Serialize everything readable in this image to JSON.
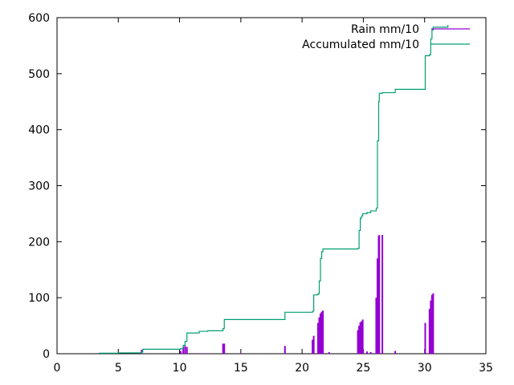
{
  "chart_data": {
    "type": "line",
    "title": "",
    "xlabel": "",
    "ylabel": "",
    "xlim": [
      0,
      35
    ],
    "ylim": [
      0,
      600
    ],
    "x_ticks": [
      0,
      5,
      10,
      15,
      20,
      25,
      30,
      35
    ],
    "y_ticks": [
      0,
      100,
      200,
      300,
      400,
      500,
      600
    ],
    "grid": false,
    "legend_position": "top-right",
    "series": [
      {
        "name": "Rain mm/10",
        "kind": "impulses",
        "color": "#9400d3",
        "points": [
          [
            3.4,
            1
          ],
          [
            5.0,
            1
          ],
          [
            6.9,
            7
          ],
          [
            10.1,
            5
          ],
          [
            10.3,
            12
          ],
          [
            10.45,
            14
          ],
          [
            10.6,
            12
          ],
          [
            11.6,
            1
          ],
          [
            12.3,
            1
          ],
          [
            13.55,
            18
          ],
          [
            13.65,
            18
          ],
          [
            15.0,
            1
          ],
          [
            18.6,
            14
          ],
          [
            20.85,
            25
          ],
          [
            20.95,
            32
          ],
          [
            21.3,
            55
          ],
          [
            21.4,
            65
          ],
          [
            21.5,
            72
          ],
          [
            21.6,
            75
          ],
          [
            21.7,
            77
          ],
          [
            22.2,
            3
          ],
          [
            24.55,
            42
          ],
          [
            24.65,
            50
          ],
          [
            24.75,
            56
          ],
          [
            24.85,
            58
          ],
          [
            24.95,
            61
          ],
          [
            25.3,
            4
          ],
          [
            25.6,
            3
          ],
          [
            26.05,
            100
          ],
          [
            26.15,
            170
          ],
          [
            26.25,
            210
          ],
          [
            26.3,
            212
          ],
          [
            26.55,
            212
          ],
          [
            27.6,
            5
          ],
          [
            30.05,
            55
          ],
          [
            30.4,
            80
          ],
          [
            30.5,
            95
          ],
          [
            30.6,
            105
          ],
          [
            30.7,
            108
          ]
        ]
      },
      {
        "name": "Accumulated mm/10",
        "kind": "steps",
        "color": "#009e73",
        "points": [
          [
            3.4,
            1
          ],
          [
            5.0,
            1.5
          ],
          [
            6.9,
            3
          ],
          [
            7.0,
            8
          ],
          [
            10.1,
            9
          ],
          [
            10.3,
            15
          ],
          [
            10.45,
            22
          ],
          [
            10.6,
            37
          ],
          [
            11.6,
            40
          ],
          [
            12.3,
            41
          ],
          [
            13.55,
            45
          ],
          [
            13.65,
            61
          ],
          [
            15.0,
            61
          ],
          [
            18.6,
            74
          ],
          [
            20.85,
            76
          ],
          [
            20.95,
            105
          ],
          [
            21.3,
            107
          ],
          [
            21.4,
            130
          ],
          [
            21.5,
            170
          ],
          [
            21.6,
            182
          ],
          [
            21.7,
            187
          ],
          [
            22.2,
            187
          ],
          [
            24.55,
            188
          ],
          [
            24.65,
            220
          ],
          [
            24.75,
            242
          ],
          [
            24.85,
            246
          ],
          [
            24.95,
            250
          ],
          [
            25.3,
            252
          ],
          [
            25.6,
            255
          ],
          [
            26.05,
            260
          ],
          [
            26.15,
            380
          ],
          [
            26.25,
            450
          ],
          [
            26.3,
            465
          ],
          [
            26.55,
            466
          ],
          [
            27.6,
            472
          ],
          [
            30.05,
            532
          ],
          [
            30.4,
            534
          ],
          [
            30.5,
            562
          ],
          [
            30.6,
            578
          ],
          [
            30.7,
            583
          ],
          [
            31.9,
            587
          ]
        ]
      }
    ]
  }
}
